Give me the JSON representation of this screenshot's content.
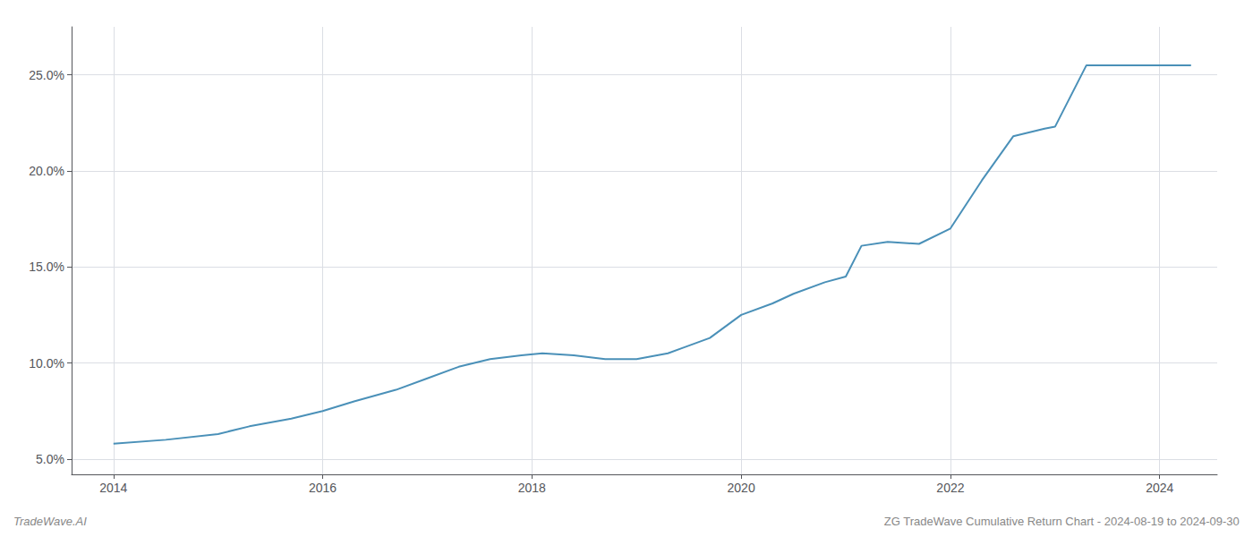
{
  "chart_data": {
    "type": "line",
    "annotations": [
      "TradeWave.AI",
      "ZG TradeWave Cumulative Return Chart - 2024-08-19 to 2024-09-30"
    ],
    "x": [
      2014.0,
      2014.5,
      2015.0,
      2015.3,
      2015.7,
      2016.0,
      2016.3,
      2016.7,
      2017.0,
      2017.3,
      2017.6,
      2017.9,
      2018.1,
      2018.4,
      2018.7,
      2019.0,
      2019.3,
      2019.7,
      2020.0,
      2020.3,
      2020.5,
      2020.8,
      2021.0,
      2021.15,
      2021.4,
      2021.7,
      2022.0,
      2022.3,
      2022.6,
      2022.9,
      2023.0,
      2023.3,
      2024.3
    ],
    "values": [
      5.8,
      6.0,
      6.3,
      6.7,
      7.1,
      7.5,
      8.0,
      8.6,
      9.2,
      9.8,
      10.2,
      10.4,
      10.5,
      10.4,
      10.2,
      10.2,
      10.5,
      11.3,
      12.5,
      13.1,
      13.6,
      14.2,
      14.5,
      16.1,
      16.3,
      16.2,
      17.0,
      19.5,
      21.8,
      22.2,
      22.3,
      25.5,
      25.5
    ],
    "color": "#4a90b8",
    "xlim": [
      2013.6,
      2024.55
    ],
    "ylim": [
      4.2,
      27.5
    ],
    "xticks": [
      2014,
      2016,
      2018,
      2020,
      2022,
      2024
    ],
    "yticks": [
      {
        "value": 5.0,
        "label": "5.0%"
      },
      {
        "value": 10.0,
        "label": "10.0%"
      },
      {
        "value": 15.0,
        "label": "15.0%"
      },
      {
        "value": 20.0,
        "label": "20.0%"
      },
      {
        "value": 25.0,
        "label": "25.0%"
      }
    ],
    "grid": true
  }
}
